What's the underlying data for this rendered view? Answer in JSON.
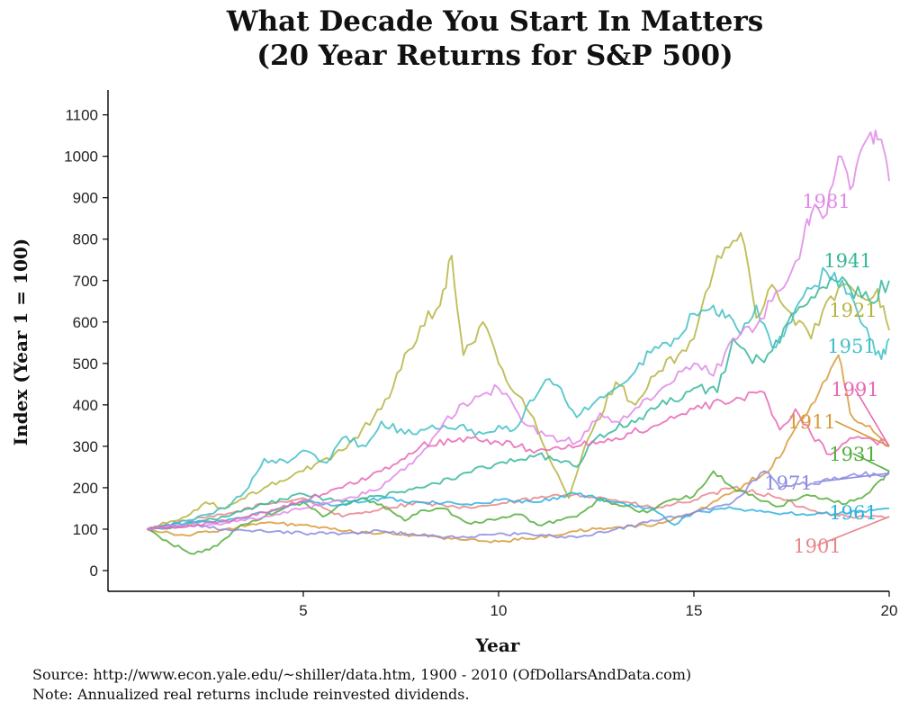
{
  "chart_data": {
    "type": "line",
    "title": [
      "What Decade You Start In Matters",
      "(20 Year Returns for S&P 500)"
    ],
    "xlabel": "Year",
    "ylabel": "Index (Year 1 = 100)",
    "xlim": [
      0,
      20
    ],
    "ylim": [
      -50,
      1160
    ],
    "xticks": [
      5,
      10,
      15,
      20
    ],
    "yticks": [
      0,
      100,
      200,
      300,
      400,
      500,
      600,
      700,
      800,
      900,
      1000,
      1100
    ],
    "grid": false,
    "legend": "direct labels at line ends",
    "series": [
      {
        "name": "1901",
        "color": "#e8858a",
        "points": [
          [
            1,
            100
          ],
          [
            2,
            120
          ],
          [
            3,
            135
          ],
          [
            4,
            160
          ],
          [
            5,
            175
          ],
          [
            6,
            130
          ],
          [
            7,
            150
          ],
          [
            8,
            165
          ],
          [
            9,
            150
          ],
          [
            10,
            160
          ],
          [
            11,
            175
          ],
          [
            12,
            185
          ],
          [
            13,
            170
          ],
          [
            14,
            150
          ],
          [
            15,
            170
          ],
          [
            16,
            200
          ],
          [
            17,
            180
          ],
          [
            18,
            145
          ],
          [
            19,
            130
          ],
          [
            20,
            130
          ]
        ]
      },
      {
        "name": "1911",
        "color": "#d89a3a",
        "points": [
          [
            1,
            100
          ],
          [
            2,
            85
          ],
          [
            3,
            100
          ],
          [
            4,
            115
          ],
          [
            5,
            110
          ],
          [
            6,
            95
          ],
          [
            7,
            90
          ],
          [
            8,
            85
          ],
          [
            9,
            75
          ],
          [
            10,
            70
          ],
          [
            11,
            80
          ],
          [
            12,
            95
          ],
          [
            13,
            105
          ],
          [
            14,
            110
          ],
          [
            15,
            140
          ],
          [
            16,
            190
          ],
          [
            17,
            250
          ],
          [
            18,
            400
          ],
          [
            18.7,
            520
          ],
          [
            19,
            380
          ],
          [
            19.5,
            350
          ],
          [
            20,
            300
          ]
        ]
      },
      {
        "name": "1921",
        "color": "#b5b440",
        "points": [
          [
            1,
            100
          ],
          [
            2,
            130
          ],
          [
            2.5,
            165
          ],
          [
            3,
            150
          ],
          [
            4,
            200
          ],
          [
            5,
            240
          ],
          [
            6,
            290
          ],
          [
            7,
            390
          ],
          [
            8,
            590
          ],
          [
            8.5,
            640
          ],
          [
            8.8,
            760
          ],
          [
            9.1,
            520
          ],
          [
            9.6,
            600
          ],
          [
            10,
            500
          ],
          [
            10.8,
            380
          ],
          [
            11.4,
            250
          ],
          [
            11.8,
            175
          ],
          [
            12.3,
            320
          ],
          [
            13,
            455
          ],
          [
            13.5,
            400
          ],
          [
            14,
            470
          ],
          [
            14.6,
            520
          ],
          [
            15,
            560
          ],
          [
            15.6,
            760
          ],
          [
            16.2,
            815
          ],
          [
            16.6,
            610
          ],
          [
            17,
            690
          ],
          [
            17.5,
            620
          ],
          [
            18,
            560
          ],
          [
            18.4,
            650
          ],
          [
            18.8,
            690
          ],
          [
            19.3,
            660
          ],
          [
            19.7,
            680
          ],
          [
            20,
            580
          ]
        ]
      },
      {
        "name": "1931",
        "color": "#55ad3c",
        "points": [
          [
            1,
            100
          ],
          [
            1.6,
            65
          ],
          [
            2.2,
            40
          ],
          [
            2.8,
            60
          ],
          [
            3.4,
            110
          ],
          [
            4,
            130
          ],
          [
            4.5,
            150
          ],
          [
            5,
            165
          ],
          [
            5.5,
            130
          ],
          [
            6,
            160
          ],
          [
            6.5,
            175
          ],
          [
            7,
            160
          ],
          [
            7.6,
            120
          ],
          [
            8,
            145
          ],
          [
            8.6,
            150
          ],
          [
            9.2,
            115
          ],
          [
            10,
            125
          ],
          [
            10.6,
            135
          ],
          [
            11,
            110
          ],
          [
            12,
            130
          ],
          [
            12.6,
            175
          ],
          [
            13.2,
            155
          ],
          [
            13.8,
            140
          ],
          [
            14.4,
            170
          ],
          [
            15,
            180
          ],
          [
            15.5,
            240
          ],
          [
            16,
            200
          ],
          [
            16.6,
            175
          ],
          [
            17.2,
            155
          ],
          [
            17.8,
            180
          ],
          [
            18.4,
            175
          ],
          [
            18.8,
            160
          ],
          [
            19.3,
            175
          ],
          [
            19.8,
            220
          ],
          [
            20,
            240
          ]
        ]
      },
      {
        "name": "1941",
        "color": "#33b79a",
        "points": [
          [
            1,
            100
          ],
          [
            2,
            110
          ],
          [
            3,
            130
          ],
          [
            4,
            160
          ],
          [
            5,
            185
          ],
          [
            6,
            165
          ],
          [
            7,
            180
          ],
          [
            8,
            200
          ],
          [
            9,
            230
          ],
          [
            10,
            260
          ],
          [
            11,
            280
          ],
          [
            12,
            250
          ],
          [
            12.5,
            320
          ],
          [
            13,
            340
          ],
          [
            14,
            390
          ],
          [
            15,
            440
          ],
          [
            15.6,
            430
          ],
          [
            16,
            560
          ],
          [
            16.5,
            500
          ],
          [
            17,
            530
          ],
          [
            17.5,
            620
          ],
          [
            18,
            660
          ],
          [
            18.6,
            700
          ],
          [
            19,
            680
          ],
          [
            19.5,
            650
          ],
          [
            20,
            700
          ]
        ]
      },
      {
        "name": "1951",
        "color": "#40c0c6",
        "points": [
          [
            1,
            100
          ],
          [
            2,
            120
          ],
          [
            3,
            150
          ],
          [
            3.6,
            200
          ],
          [
            4,
            270
          ],
          [
            4.6,
            260
          ],
          [
            5,
            290
          ],
          [
            5.6,
            260
          ],
          [
            6,
            320
          ],
          [
            6.6,
            300
          ],
          [
            7,
            360
          ],
          [
            7.6,
            330
          ],
          [
            8,
            340
          ],
          [
            8.6,
            350
          ],
          [
            9,
            350
          ],
          [
            9.6,
            330
          ],
          [
            10,
            350
          ],
          [
            10.4,
            340
          ],
          [
            10.8,
            410
          ],
          [
            11.2,
            460
          ],
          [
            11.6,
            440
          ],
          [
            12,
            370
          ],
          [
            12.5,
            410
          ],
          [
            13,
            440
          ],
          [
            13.4,
            470
          ],
          [
            14,
            540
          ],
          [
            14.5,
            560
          ],
          [
            15,
            620
          ],
          [
            15.5,
            640
          ],
          [
            15.8,
            610
          ],
          [
            16.2,
            570
          ],
          [
            16.6,
            640
          ],
          [
            17,
            540
          ],
          [
            17.5,
            600
          ],
          [
            18,
            680
          ],
          [
            18.4,
            720
          ],
          [
            18.8,
            700
          ],
          [
            19.2,
            620
          ],
          [
            19.5,
            560
          ],
          [
            19.8,
            510
          ],
          [
            20,
            560
          ]
        ]
      },
      {
        "name": "1961",
        "color": "#2fb3df",
        "points": [
          [
            1,
            100
          ],
          [
            2,
            115
          ],
          [
            3,
            120
          ],
          [
            4,
            140
          ],
          [
            5,
            165
          ],
          [
            6,
            160
          ],
          [
            7,
            175
          ],
          [
            8,
            165
          ],
          [
            9,
            160
          ],
          [
            10,
            170
          ],
          [
            11,
            165
          ],
          [
            12,
            185
          ],
          [
            13,
            165
          ],
          [
            14,
            145
          ],
          [
            14.5,
            110
          ],
          [
            15,
            140
          ],
          [
            16,
            150
          ],
          [
            17,
            140
          ],
          [
            18,
            135
          ],
          [
            19,
            140
          ],
          [
            20,
            150
          ]
        ]
      },
      {
        "name": "1971",
        "color": "#8c8ce0",
        "points": [
          [
            1,
            100
          ],
          [
            2,
            110
          ],
          [
            3,
            100
          ],
          [
            4,
            95
          ],
          [
            5,
            90
          ],
          [
            6,
            90
          ],
          [
            7,
            95
          ],
          [
            8,
            85
          ],
          [
            9,
            80
          ],
          [
            10,
            90
          ],
          [
            11,
            85
          ],
          [
            12,
            80
          ],
          [
            13,
            100
          ],
          [
            14,
            120
          ],
          [
            15,
            140
          ],
          [
            16,
            165
          ],
          [
            16.8,
            240
          ],
          [
            17.2,
            200
          ],
          [
            18,
            210
          ],
          [
            19,
            230
          ],
          [
            20,
            235
          ]
        ]
      },
      {
        "name": "1981",
        "color": "#e088e8",
        "points": [
          [
            1,
            100
          ],
          [
            2,
            110
          ],
          [
            3,
            115
          ],
          [
            4,
            130
          ],
          [
            5,
            150
          ],
          [
            6,
            170
          ],
          [
            7,
            200
          ],
          [
            8,
            280
          ],
          [
            8.5,
            340
          ],
          [
            9,
            400
          ],
          [
            9.5,
            420
          ],
          [
            10,
            440
          ],
          [
            10.5,
            380
          ],
          [
            11,
            330
          ],
          [
            12,
            310
          ],
          [
            12.6,
            380
          ],
          [
            13,
            360
          ],
          [
            14,
            420
          ],
          [
            15,
            500
          ],
          [
            15.5,
            470
          ],
          [
            16,
            560
          ],
          [
            16.6,
            590
          ],
          [
            17,
            650
          ],
          [
            17.4,
            700
          ],
          [
            17.8,
            800
          ],
          [
            18,
            860
          ],
          [
            18.4,
            860
          ],
          [
            18.7,
            1000
          ],
          [
            19,
            920
          ],
          [
            19.3,
            1020
          ],
          [
            19.6,
            1030
          ],
          [
            19.8,
            1040
          ],
          [
            20,
            940
          ]
        ]
      },
      {
        "name": "1991",
        "color": "#e868b5",
        "points": [
          [
            1,
            100
          ],
          [
            2,
            105
          ],
          [
            3,
            120
          ],
          [
            4,
            140
          ],
          [
            5,
            170
          ],
          [
            6,
            200
          ],
          [
            7,
            240
          ],
          [
            8,
            300
          ],
          [
            9,
            320
          ],
          [
            10,
            310
          ],
          [
            11,
            290
          ],
          [
            12,
            300
          ],
          [
            13,
            320
          ],
          [
            14,
            350
          ],
          [
            15,
            390
          ],
          [
            16,
            410
          ],
          [
            16.8,
            430
          ],
          [
            17.2,
            340
          ],
          [
            17.6,
            390
          ],
          [
            18,
            330
          ],
          [
            18.5,
            280
          ],
          [
            19,
            320
          ],
          [
            19.5,
            320
          ],
          [
            20,
            300
          ]
        ]
      }
    ],
    "labels": [
      {
        "series": "1981",
        "text": "1981"
      },
      {
        "series": "1941",
        "text": "1941"
      },
      {
        "series": "1921",
        "text": "1921"
      },
      {
        "series": "1951",
        "text": "1951"
      },
      {
        "series": "1991",
        "text": "1991"
      },
      {
        "series": "1911",
        "text": "1911"
      },
      {
        "series": "1931",
        "text": "1931"
      },
      {
        "series": "1971",
        "text": "1971"
      },
      {
        "series": "1961",
        "text": "1961"
      },
      {
        "series": "1901",
        "text": "1901"
      }
    ]
  },
  "footer": {
    "source": "Source:  http://www.econ.yale.edu/~shiller/data.htm, 1900 - 2010 (OfDollarsAndData.com)",
    "note": "Note:  Annualized real returns include reinvested dividends."
  }
}
